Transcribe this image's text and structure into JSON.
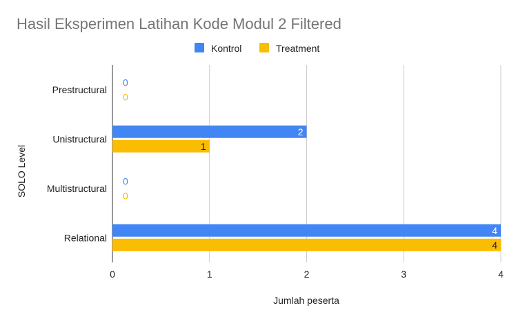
{
  "chart_data": {
    "type": "bar",
    "orientation": "horizontal",
    "title": "Hasil Eksperimen Latihan Kode Modul 2 Filtered",
    "xlabel": "Jumlah peserta",
    "ylabel": "SOLO Level",
    "categories": [
      "Prestructural",
      "Unistructural",
      "Multistructural",
      "Relational"
    ],
    "series": [
      {
        "name": "Kontrol",
        "values": [
          0,
          2,
          0,
          4
        ],
        "color": "#4285F4"
      },
      {
        "name": "Treatment",
        "values": [
          0,
          1,
          0,
          4
        ],
        "color": "#FBBC04"
      }
    ],
    "xlim": [
      0,
      4
    ],
    "xticks": [
      0,
      1,
      2,
      3,
      4
    ],
    "grid": true,
    "legend_position": "top",
    "data_labels": true
  }
}
